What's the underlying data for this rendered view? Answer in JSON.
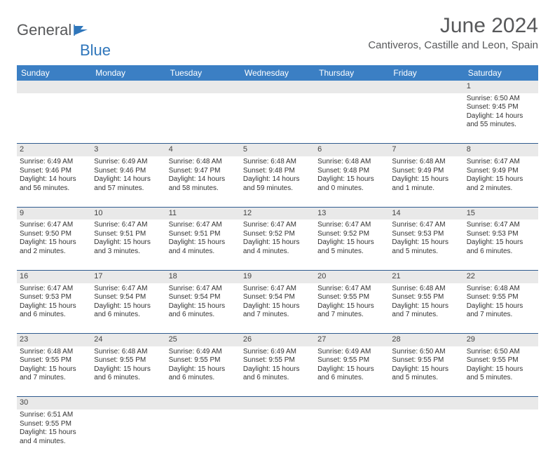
{
  "brand": {
    "part1": "General",
    "part2": "Blue"
  },
  "title": "June 2024",
  "location": "Cantiveros, Castille and Leon, Spain",
  "colors": {
    "header_bg": "#3b7fc4",
    "header_fg": "#ffffff",
    "daynum_bg": "#e9e9e9",
    "border": "#2f5b8f",
    "brand_gray": "#57585a",
    "brand_blue": "#2f76bb"
  },
  "dayNames": [
    "Sunday",
    "Monday",
    "Tuesday",
    "Wednesday",
    "Thursday",
    "Friday",
    "Saturday"
  ],
  "weeks": [
    {
      "nums": [
        "",
        "",
        "",
        "",
        "",
        "",
        "1"
      ],
      "cells": [
        "",
        "",
        "",
        "",
        "",
        "",
        "Sunrise: 6:50 AM\nSunset: 9:45 PM\nDaylight: 14 hours and 55 minutes."
      ]
    },
    {
      "nums": [
        "2",
        "3",
        "4",
        "5",
        "6",
        "7",
        "8"
      ],
      "cells": [
        "Sunrise: 6:49 AM\nSunset: 9:46 PM\nDaylight: 14 hours and 56 minutes.",
        "Sunrise: 6:49 AM\nSunset: 9:46 PM\nDaylight: 14 hours and 57 minutes.",
        "Sunrise: 6:48 AM\nSunset: 9:47 PM\nDaylight: 14 hours and 58 minutes.",
        "Sunrise: 6:48 AM\nSunset: 9:48 PM\nDaylight: 14 hours and 59 minutes.",
        "Sunrise: 6:48 AM\nSunset: 9:48 PM\nDaylight: 15 hours and 0 minutes.",
        "Sunrise: 6:48 AM\nSunset: 9:49 PM\nDaylight: 15 hours and 1 minute.",
        "Sunrise: 6:47 AM\nSunset: 9:49 PM\nDaylight: 15 hours and 2 minutes."
      ]
    },
    {
      "nums": [
        "9",
        "10",
        "11",
        "12",
        "13",
        "14",
        "15"
      ],
      "cells": [
        "Sunrise: 6:47 AM\nSunset: 9:50 PM\nDaylight: 15 hours and 2 minutes.",
        "Sunrise: 6:47 AM\nSunset: 9:51 PM\nDaylight: 15 hours and 3 minutes.",
        "Sunrise: 6:47 AM\nSunset: 9:51 PM\nDaylight: 15 hours and 4 minutes.",
        "Sunrise: 6:47 AM\nSunset: 9:52 PM\nDaylight: 15 hours and 4 minutes.",
        "Sunrise: 6:47 AM\nSunset: 9:52 PM\nDaylight: 15 hours and 5 minutes.",
        "Sunrise: 6:47 AM\nSunset: 9:53 PM\nDaylight: 15 hours and 5 minutes.",
        "Sunrise: 6:47 AM\nSunset: 9:53 PM\nDaylight: 15 hours and 6 minutes."
      ]
    },
    {
      "nums": [
        "16",
        "17",
        "18",
        "19",
        "20",
        "21",
        "22"
      ],
      "cells": [
        "Sunrise: 6:47 AM\nSunset: 9:53 PM\nDaylight: 15 hours and 6 minutes.",
        "Sunrise: 6:47 AM\nSunset: 9:54 PM\nDaylight: 15 hours and 6 minutes.",
        "Sunrise: 6:47 AM\nSunset: 9:54 PM\nDaylight: 15 hours and 6 minutes.",
        "Sunrise: 6:47 AM\nSunset: 9:54 PM\nDaylight: 15 hours and 7 minutes.",
        "Sunrise: 6:47 AM\nSunset: 9:55 PM\nDaylight: 15 hours and 7 minutes.",
        "Sunrise: 6:48 AM\nSunset: 9:55 PM\nDaylight: 15 hours and 7 minutes.",
        "Sunrise: 6:48 AM\nSunset: 9:55 PM\nDaylight: 15 hours and 7 minutes."
      ]
    },
    {
      "nums": [
        "23",
        "24",
        "25",
        "26",
        "27",
        "28",
        "29"
      ],
      "cells": [
        "Sunrise: 6:48 AM\nSunset: 9:55 PM\nDaylight: 15 hours and 7 minutes.",
        "Sunrise: 6:48 AM\nSunset: 9:55 PM\nDaylight: 15 hours and 6 minutes.",
        "Sunrise: 6:49 AM\nSunset: 9:55 PM\nDaylight: 15 hours and 6 minutes.",
        "Sunrise: 6:49 AM\nSunset: 9:55 PM\nDaylight: 15 hours and 6 minutes.",
        "Sunrise: 6:49 AM\nSunset: 9:55 PM\nDaylight: 15 hours and 6 minutes.",
        "Sunrise: 6:50 AM\nSunset: 9:55 PM\nDaylight: 15 hours and 5 minutes.",
        "Sunrise: 6:50 AM\nSunset: 9:55 PM\nDaylight: 15 hours and 5 minutes."
      ]
    },
    {
      "nums": [
        "30",
        "",
        "",
        "",
        "",
        "",
        ""
      ],
      "cells": [
        "Sunrise: 6:51 AM\nSunset: 9:55 PM\nDaylight: 15 hours and 4 minutes.",
        "",
        "",
        "",
        "",
        "",
        ""
      ]
    }
  ]
}
